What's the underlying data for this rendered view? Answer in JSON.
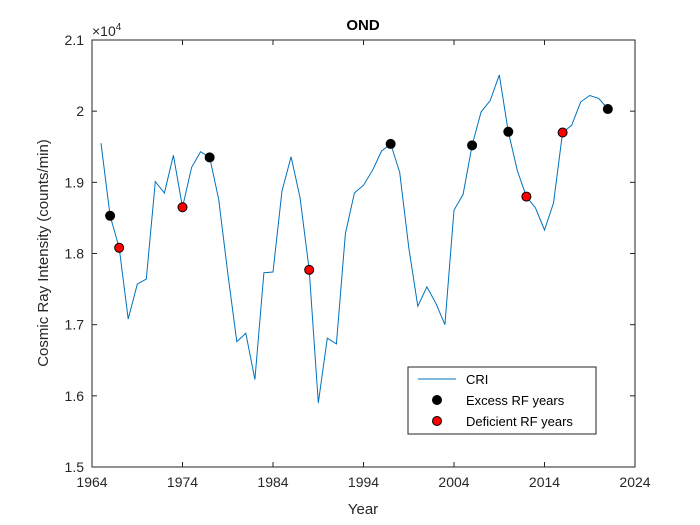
{
  "chart_data": {
    "type": "line",
    "title": "OND",
    "xlabel": "Year",
    "ylabel": "Cosmic Ray Intensity (counts/min)",
    "y_exponent_label": "×10",
    "y_exponent_power": "4",
    "xlim": [
      1964,
      2024
    ],
    "ylim": [
      1.5,
      2.1
    ],
    "x_ticks": [
      1964,
      1974,
      1984,
      1994,
      2004,
      2014,
      2024
    ],
    "x_tick_labels": [
      "1964",
      "1974",
      "1984",
      "1994",
      "2004",
      "2014",
      "2024"
    ],
    "y_ticks": [
      1.5,
      1.6,
      1.7,
      1.8,
      1.9,
      2.0,
      2.1
    ],
    "y_tick_labels": [
      "1.5",
      "1.6",
      "1.7",
      "1.8",
      "1.9",
      "2",
      "2.1"
    ],
    "grid": false,
    "legend_position": "bottom-right",
    "series": [
      {
        "name": "CRI",
        "color": "#0072BD",
        "style": "line",
        "points": [
          [
            1965,
            1.955
          ],
          [
            1966,
            1.853
          ],
          [
            1967,
            1.808
          ],
          [
            1968,
            1.708
          ],
          [
            1969,
            1.757
          ],
          [
            1970,
            1.764
          ],
          [
            1971,
            1.901
          ],
          [
            1972,
            1.885
          ],
          [
            1973,
            1.938
          ],
          [
            1974,
            1.865
          ],
          [
            1975,
            1.921
          ],
          [
            1976,
            1.943
          ],
          [
            1977,
            1.935
          ],
          [
            1978,
            1.876
          ],
          [
            1979,
            1.772
          ],
          [
            1980,
            1.676
          ],
          [
            1981,
            1.688
          ],
          [
            1982,
            1.623
          ],
          [
            1983,
            1.773
          ],
          [
            1984,
            1.774
          ],
          [
            1985,
            1.888
          ],
          [
            1986,
            1.936
          ],
          [
            1987,
            1.878
          ],
          [
            1988,
            1.777
          ],
          [
            1989,
            1.59
          ],
          [
            1990,
            1.681
          ],
          [
            1991,
            1.673
          ],
          [
            1992,
            1.828
          ],
          [
            1993,
            1.885
          ],
          [
            1994,
            1.896
          ],
          [
            1995,
            1.917
          ],
          [
            1996,
            1.944
          ],
          [
            1997,
            1.954
          ],
          [
            1998,
            1.914
          ],
          [
            1999,
            1.808
          ],
          [
            2000,
            1.726
          ],
          [
            2001,
            1.753
          ],
          [
            2002,
            1.73
          ],
          [
            2003,
            1.7
          ],
          [
            2004,
            1.861
          ],
          [
            2005,
            1.883
          ],
          [
            2006,
            1.952
          ],
          [
            2007,
            1.999
          ],
          [
            2008,
            2.015
          ],
          [
            2009,
            2.051
          ],
          [
            2010,
            1.971
          ],
          [
            2011,
            1.916
          ],
          [
            2012,
            1.88
          ],
          [
            2013,
            1.864
          ],
          [
            2014,
            1.833
          ],
          [
            2015,
            1.871
          ],
          [
            2016,
            1.97
          ],
          [
            2017,
            1.98
          ],
          [
            2018,
            2.013
          ],
          [
            2019,
            2.022
          ],
          [
            2020,
            2.018
          ],
          [
            2021,
            2.003
          ]
        ]
      },
      {
        "name": "Excess RF years",
        "color": "#000000",
        "style": "marker",
        "points": [
          [
            1966,
            1.853
          ],
          [
            1977,
            1.935
          ],
          [
            1997,
            1.954
          ],
          [
            2006,
            1.952
          ],
          [
            2010,
            1.971
          ],
          [
            2021,
            2.003
          ]
        ]
      },
      {
        "name": "Deficient RF years",
        "color": "#FF0000",
        "style": "marker",
        "points": [
          [
            1967,
            1.808
          ],
          [
            1974,
            1.865
          ],
          [
            1988,
            1.777
          ],
          [
            2012,
            1.88
          ],
          [
            2016,
            1.97
          ]
        ]
      }
    ]
  }
}
